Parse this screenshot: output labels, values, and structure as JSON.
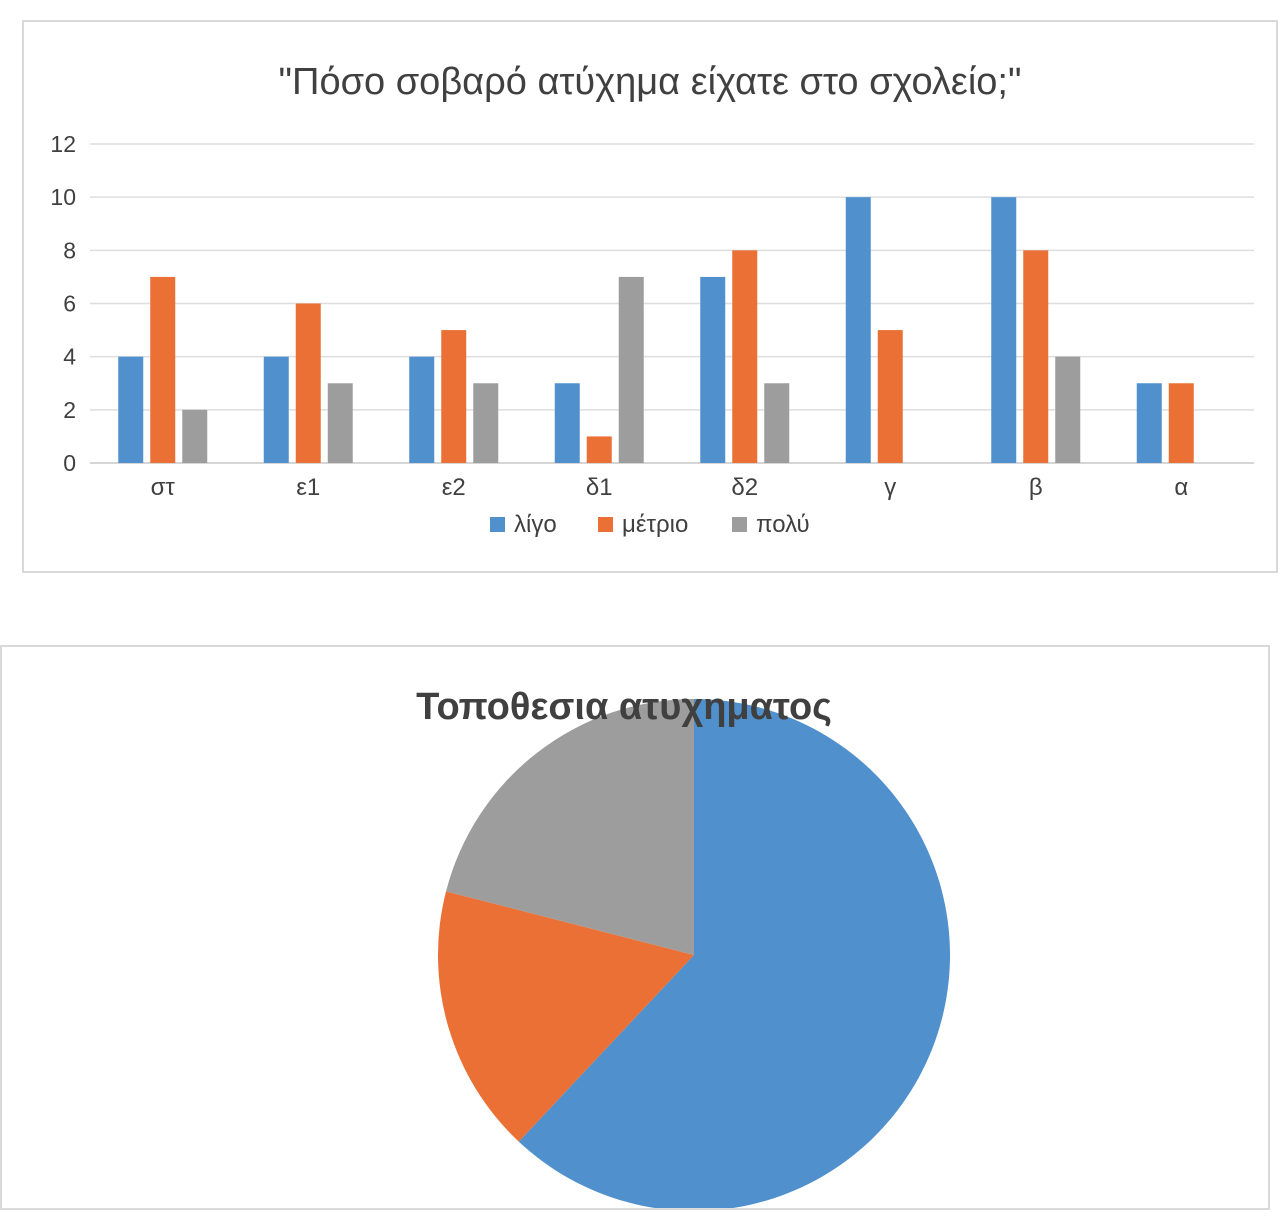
{
  "chart_data": [
    {
      "type": "bar",
      "title": "\"Πόσο σοβαρό ατύχημα είχατε στο σχολείο;\"",
      "categories": [
        "στ",
        "ε1",
        "ε2",
        "δ1",
        "δ2",
        "γ",
        "β",
        "α"
      ],
      "series": [
        {
          "name": "λίγο",
          "color": "#4f90cd",
          "values": [
            4,
            4,
            4,
            3,
            7,
            10,
            10,
            3
          ]
        },
        {
          "name": "μέτριο",
          "color": "#ea7035",
          "values": [
            7,
            6,
            5,
            1,
            8,
            5,
            8,
            3
          ]
        },
        {
          "name": "πολύ",
          "color": "#9d9d9d",
          "values": [
            2,
            3,
            3,
            7,
            3,
            0,
            4,
            0
          ]
        }
      ],
      "ylim": [
        0,
        12
      ],
      "yticks": [
        0,
        2,
        4,
        6,
        8,
        10,
        12
      ],
      "grid": true,
      "legend": "bottom"
    },
    {
      "type": "pie",
      "title": "Τοποθεσια ατυχηματος",
      "slices": [
        {
          "value": 0.62,
          "color": "#4f90cd"
        },
        {
          "value": 0.17,
          "color": "#ea7035"
        },
        {
          "value": 0.21,
          "color": "#9d9d9d"
        }
      ]
    }
  ]
}
